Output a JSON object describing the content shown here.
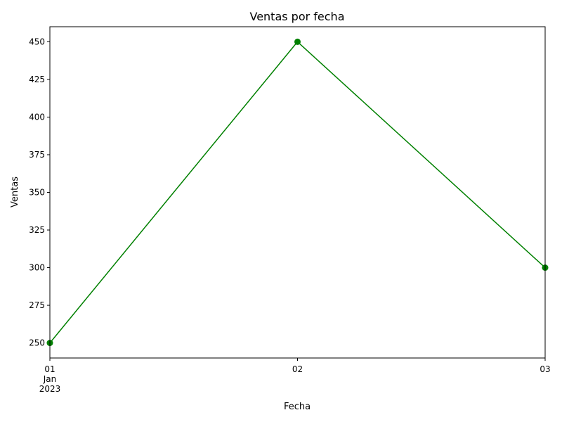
{
  "chart_data": {
    "type": "line",
    "title": "Ventas por fecha",
    "xlabel": "Fecha",
    "ylabel": "Ventas",
    "x": [
      "2023-01-01",
      "2023-01-02",
      "2023-01-03"
    ],
    "x_tick_labels": [
      [
        "01",
        "Jan",
        "2023"
      ],
      [
        "02"
      ],
      [
        "03"
      ]
    ],
    "series": [
      {
        "values": [
          250,
          450,
          300
        ],
        "color": "#008000",
        "marker": "circle"
      }
    ],
    "ylim": [
      240,
      460
    ],
    "y_ticks": [
      250,
      275,
      300,
      325,
      350,
      375,
      400,
      425,
      450
    ],
    "grid": false,
    "legend": "none"
  }
}
